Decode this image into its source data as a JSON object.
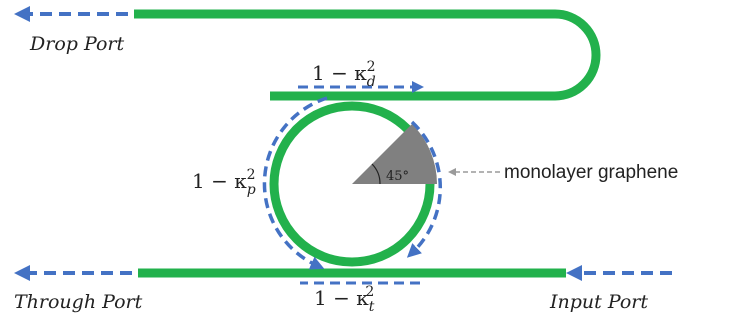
{
  "colors": {
    "waveguide": "#22b14c",
    "flow_arrow": "#4472c4",
    "graphene": "#808080",
    "callout_arrow": "#9a9a9a",
    "text": "#222222"
  },
  "ports": {
    "drop": "Drop Port",
    "through": "Through Port",
    "input": "Input Port"
  },
  "coupling": {
    "drop": {
      "prefix": "1 − κ",
      "sub": "d",
      "sup": "2"
    },
    "ring": {
      "prefix": "1 − κ",
      "sub": "p",
      "sup": "2"
    },
    "through": {
      "prefix": "1 − κ",
      "sub": "t",
      "sup": "2"
    }
  },
  "graphene": {
    "label": "monolayer graphene",
    "angle_label": "45°",
    "angle_deg": 45
  }
}
